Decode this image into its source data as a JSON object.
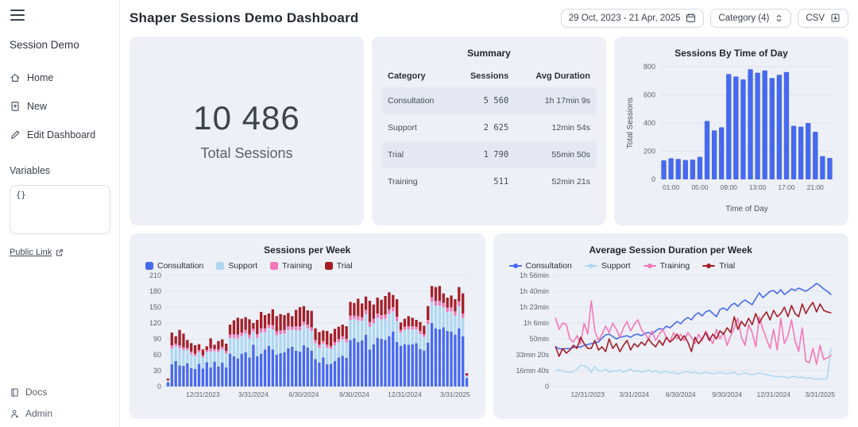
{
  "sidebar": {
    "title": "Session Demo",
    "items": [
      {
        "label": "Home"
      },
      {
        "label": "New"
      },
      {
        "label": "Edit Dashboard"
      }
    ],
    "variables_label": "Variables",
    "variables_value": "{}",
    "public_link_label": "Public Link",
    "footer_items": [
      {
        "label": "Docs"
      },
      {
        "label": "Admin"
      }
    ]
  },
  "header": {
    "title": "Shaper Sessions Demo Dashboard",
    "date_range": "29 Oct, 2023 - 21 Apr, 2025",
    "category_filter": "Category (4)",
    "export_label": "CSV"
  },
  "kpi": {
    "value": "10 486",
    "label": "Total Sessions"
  },
  "summary_table": {
    "title": "Summary",
    "columns": [
      "Category",
      "Sessions",
      "Avg Duration"
    ],
    "rows": [
      [
        "Consultation",
        "5 560",
        "1h 17min 9s"
      ],
      [
        "Support",
        "2 625",
        "12min 54s"
      ],
      [
        "Trial",
        "1 790",
        "55min 50s"
      ],
      [
        "Training",
        "511",
        "52min 21s"
      ]
    ]
  },
  "colors": {
    "consultation": "#4769ee",
    "support": "#aed8f2",
    "training": "#f478b8",
    "trial": "#a51e27",
    "card_bg": "#edf0f7",
    "grid": "#dfe3ed"
  },
  "chart_data": [
    {
      "id": "time_of_day",
      "type": "bar",
      "title": "Sessions By Time of Day",
      "xlabel": "Time of Day",
      "ylabel": "Total Sessions",
      "categories": [
        "00:00",
        "01:00",
        "02:00",
        "03:00",
        "04:00",
        "05:00",
        "06:00",
        "07:00",
        "08:00",
        "09:00",
        "10:00",
        "11:00",
        "12:00",
        "13:00",
        "14:00",
        "15:00",
        "16:00",
        "17:00",
        "18:00",
        "19:00",
        "20:00",
        "21:00",
        "22:00",
        "23:00"
      ],
      "values": [
        135,
        150,
        145,
        137,
        140,
        160,
        415,
        348,
        370,
        748,
        730,
        710,
        782,
        757,
        773,
        720,
        742,
        762,
        380,
        375,
        400,
        338,
        165,
        152
      ],
      "ylim": [
        0,
        800
      ],
      "yticks": [
        0,
        200,
        400,
        600,
        800
      ],
      "xticks": [
        {
          "i": 1,
          "label": "01:00"
        },
        {
          "i": 5,
          "label": "05:00"
        },
        {
          "i": 9,
          "label": "09:00"
        },
        {
          "i": 13,
          "label": "13:00"
        },
        {
          "i": 17,
          "label": "17:00"
        },
        {
          "i": 21,
          "label": "21:00"
        }
      ],
      "color": "#4769ee",
      "legend": false
    },
    {
      "id": "sessions_per_week",
      "type": "stacked_bar",
      "title": "Sessions per Week",
      "x_count": 78,
      "ylim": [
        0,
        210
      ],
      "yticks": [
        0,
        30,
        60,
        90,
        120,
        150,
        180,
        210
      ],
      "xticks": [
        {
          "i": 9,
          "label": "12/31/2023"
        },
        {
          "i": 22,
          "label": "3/31/2024"
        },
        {
          "i": 35,
          "label": "6/30/2024"
        },
        {
          "i": 48,
          "label": "9/30/2024"
        },
        {
          "i": 61,
          "label": "12/31/2024"
        },
        {
          "i": 74,
          "label": "3/31/2025"
        }
      ],
      "legend": true,
      "series": [
        {
          "name": "Consultation",
          "color": "#4769ee",
          "values": [
            8,
            42,
            48,
            40,
            39,
            44,
            35,
            33,
            43,
            34,
            46,
            36,
            47,
            38,
            45,
            36,
            62,
            57,
            53,
            62,
            65,
            55,
            79,
            57,
            62,
            70,
            77,
            70,
            60,
            63,
            65,
            72,
            75,
            68,
            66,
            78,
            74,
            68,
            52,
            45,
            55,
            42,
            43,
            48,
            55,
            58,
            54,
            88,
            91,
            84,
            87,
            98,
            70,
            80,
            92,
            90,
            88,
            95,
            104,
            84,
            77,
            80,
            79,
            80,
            82,
            71,
            68,
            83,
            120,
            110,
            108,
            112,
            105,
            104,
            98,
            110,
            95,
            16
          ]
        },
        {
          "name": "Support",
          "color": "#aed8f2",
          "values": [
            3,
            30,
            28,
            32,
            30,
            25,
            26,
            25,
            22,
            21,
            19,
            30,
            20,
            27,
            25,
            26,
            30,
            35,
            38,
            34,
            35,
            36,
            25,
            35,
            40,
            33,
            34,
            38,
            37,
            36,
            35,
            35,
            32,
            38,
            40,
            38,
            36,
            37,
            30,
            28,
            26,
            31,
            28,
            30,
            29,
            31,
            30,
            38,
            36,
            41,
            37,
            39,
            43,
            40,
            38,
            37,
            40,
            42,
            38,
            40,
            25,
            27,
            29,
            28,
            26,
            28,
            26,
            35,
            40,
            43,
            45,
            38,
            36,
            38,
            36,
            42,
            35,
            4
          ]
        },
        {
          "name": "Training",
          "color": "#f478b8",
          "values": [
            1,
            6,
            5,
            6,
            5,
            4,
            5,
            4,
            4,
            4,
            4,
            6,
            4,
            5,
            5,
            5,
            6,
            7,
            7,
            6,
            7,
            7,
            5,
            7,
            8,
            7,
            6,
            8,
            7,
            7,
            7,
            7,
            6,
            8,
            8,
            7,
            7,
            7,
            6,
            6,
            5,
            6,
            5,
            6,
            6,
            6,
            6,
            8,
            7,
            8,
            7,
            8,
            9,
            8,
            8,
            8,
            8,
            9,
            8,
            8,
            5,
            6,
            6,
            6,
            5,
            6,
            5,
            8,
            9,
            9,
            9,
            8,
            8,
            8,
            8,
            9,
            8,
            1
          ]
        },
        {
          "name": "Trial",
          "color": "#a51e27",
          "values": [
            3,
            24,
            14,
            29,
            26,
            15,
            16,
            16,
            11,
            11,
            7,
            19,
            8,
            16,
            14,
            14,
            19,
            26,
            32,
            26,
            24,
            29,
            11,
            27,
            31,
            25,
            21,
            30,
            29,
            31,
            28,
            25,
            20,
            31,
            36,
            29,
            27,
            31,
            22,
            24,
            20,
            26,
            24,
            25,
            23,
            22,
            24,
            26,
            24,
            33,
            26,
            25,
            40,
            27,
            30,
            29,
            35,
            32,
            23,
            33,
            14,
            15,
            19,
            16,
            13,
            17,
            16,
            26,
            21,
            26,
            28,
            18,
            19,
            22,
            23,
            27,
            38,
            4
          ]
        }
      ]
    },
    {
      "id": "avg_duration_per_week",
      "type": "line",
      "title": "Average Session Duration per Week",
      "x_count": 78,
      "ylim": [
        0,
        7000
      ],
      "yticks": [
        {
          "v": 0,
          "label": "0"
        },
        {
          "v": 1000,
          "label": "16min 40s"
        },
        {
          "v": 2000,
          "label": "33min 20s"
        },
        {
          "v": 3000,
          "label": "50min"
        },
        {
          "v": 4000,
          "label": "1h 6min"
        },
        {
          "v": 5000,
          "label": "1h 23min"
        },
        {
          "v": 6000,
          "label": "1h 40min"
        },
        {
          "v": 7000,
          "label": "1h 56min"
        }
      ],
      "xticks": [
        {
          "i": 9,
          "label": "12/31/2023"
        },
        {
          "i": 22,
          "label": "3/31/2024"
        },
        {
          "i": 35,
          "label": "6/30/2024"
        },
        {
          "i": 48,
          "label": "9/30/2024"
        },
        {
          "i": 61,
          "label": "12/31/2024"
        },
        {
          "i": 74,
          "label": "3/31/2025"
        }
      ],
      "legend": true,
      "unit": "seconds",
      "series": [
        {
          "name": "Consultation",
          "color": "#4769ee",
          "values": [
            2500,
            2380,
            2350,
            2400,
            2380,
            2450,
            2520,
            2480,
            2600,
            2650,
            2700,
            2750,
            2800,
            3050,
            3250,
            3300,
            3150,
            3000,
            3100,
            3150,
            3200,
            3100,
            3250,
            3300,
            3200,
            3350,
            3400,
            3300,
            3500,
            3650,
            3600,
            3800,
            3700,
            3900,
            4100,
            3950,
            4200,
            4350,
            4200,
            4500,
            4650,
            4450,
            4700,
            4800,
            4600,
            4400,
            4850,
            4950,
            4800,
            5100,
            5250,
            5050,
            5300,
            5450,
            5300,
            5150,
            5550,
            5900,
            5600,
            5800,
            6000,
            6050,
            5850,
            6100,
            5800,
            5950,
            6150,
            6050,
            6200,
            6100,
            6000,
            6150,
            6300,
            6500,
            6350,
            6150,
            6000,
            5800
          ]
        },
        {
          "name": "Support",
          "color": "#aed8f2",
          "values": [
            1000,
            1050,
            980,
            900,
            880,
            950,
            1100,
            1350,
            1300,
            1200,
            900,
            1250,
            1000,
            950,
            1100,
            900,
            1000,
            950,
            1050,
            900,
            1000,
            1100,
            950,
            1000,
            900,
            950,
            1050,
            900,
            1000,
            850,
            900,
            950,
            850,
            900,
            800,
            850,
            900,
            950,
            850,
            900,
            800,
            850,
            900,
            850,
            800,
            850,
            900,
            850,
            800,
            850,
            900,
            750,
            800,
            850,
            800,
            750,
            800,
            850,
            800,
            750,
            700,
            650,
            600,
            650,
            600,
            550,
            600,
            650,
            550,
            600,
            500,
            550,
            500,
            450,
            500,
            450,
            500,
            2400
          ]
        },
        {
          "name": "Training",
          "color": "#f478b8",
          "values": [
            4300,
            3600,
            4000,
            3900,
            3000,
            2800,
            3200,
            2700,
            4000,
            3300,
            5400,
            3500,
            2900,
            3300,
            3800,
            3400,
            4000,
            3600,
            3100,
            3700,
            4100,
            3500,
            3900,
            4200,
            3600,
            3300,
            3000,
            3500,
            2900,
            3300,
            3600,
            3100,
            2800,
            3400,
            3000,
            3300,
            2900,
            3400,
            3100,
            2700,
            3300,
            2900,
            3500,
            3100,
            2700,
            3600,
            3000,
            3400,
            2600,
            3200,
            3700,
            4300,
            3100,
            2600,
            3900,
            3400,
            2500,
            4400,
            3600,
            3000,
            2400,
            3600,
            2300,
            4300,
            2700,
            3200,
            4200,
            2900,
            2200,
            3700,
            1600,
            1500,
            2400,
            1400,
            2600,
            1700,
            1800,
            1950
          ]
        },
        {
          "name": "Trial",
          "color": "#a51e27",
          "values": [
            2500,
            1900,
            2400,
            2100,
            2300,
            2600,
            2400,
            3100,
            2700,
            2400,
            2400,
            2900,
            2300,
            2500,
            2200,
            3000,
            2400,
            2700,
            2200,
            2600,
            2900,
            2300,
            2700,
            2500,
            2800,
            2600,
            3000,
            2700,
            2500,
            2900,
            2600,
            3100,
            2800,
            3000,
            3300,
            2900,
            3200,
            2800,
            2200,
            3100,
            2700,
            3000,
            3400,
            2900,
            3300,
            3000,
            3500,
            3300,
            3700,
            3400,
            4400,
            3600,
            4100,
            3800,
            4300,
            3900,
            4600,
            4000,
            4400,
            4700,
            4200,
            4800,
            4400,
            4600,
            5000,
            4400,
            5100,
            4600,
            4400,
            5200,
            4600,
            5000,
            5300,
            4700,
            5200,
            4800,
            4700,
            4650
          ]
        }
      ]
    }
  ]
}
